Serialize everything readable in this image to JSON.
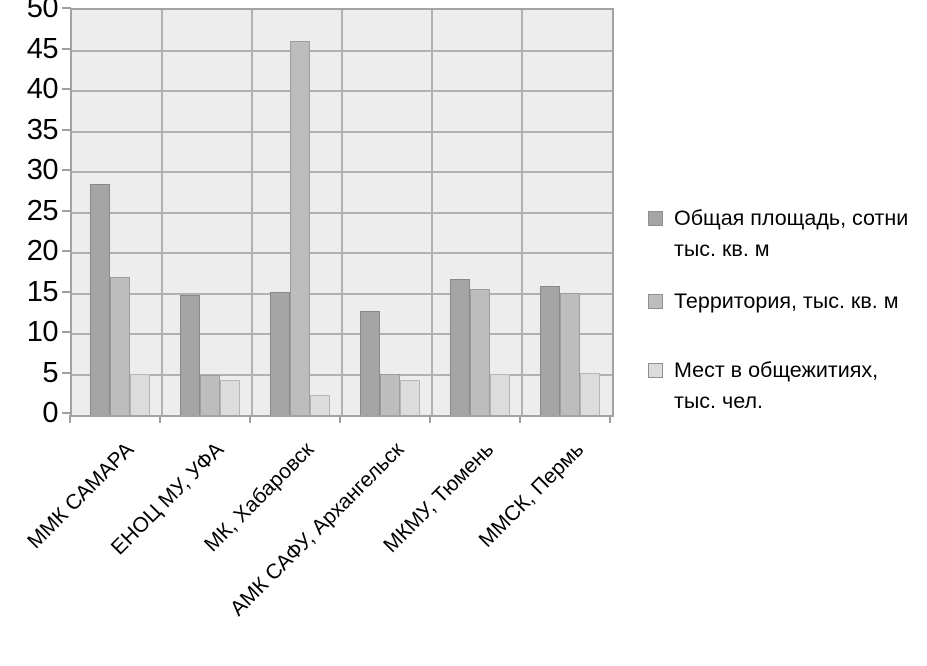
{
  "chart_data": {
    "type": "bar",
    "title": "",
    "xlabel": "",
    "ylabel": "",
    "categories": [
      "ММК САМАРА",
      "ЕНОЦ МУ, УФА",
      "МК, Хабаровск",
      "АМК САФУ, Архангельск",
      "МКМУ, Тюмень",
      "ММСК, Пермь"
    ],
    "series": [
      {
        "name": "Общая площадь, сотни тыс. кв. м",
        "legend_lines": [
          "Общая площадь, сотни",
          "тыс. кв. м"
        ],
        "color": "#a5a5a5",
        "border_color": "#898989",
        "values": [
          28.5,
          14.8,
          15.2,
          12.8,
          16.8,
          15.9
        ]
      },
      {
        "name": "Территория, тыс. кв. м",
        "legend_lines": [
          "Территория, тыс. кв. м"
        ],
        "color": "#bdbdbd",
        "border_color": "#9d9d9d",
        "values": [
          17.0,
          4.9,
          46.2,
          5.1,
          15.6,
          15.1
        ]
      },
      {
        "name": "Мест в общежитиях, тыс. чел.",
        "legend_lines": [
          "Мест в общежитиях,",
          "тыс. чел."
        ],
        "color": "#dcdcdc",
        "border_color": "#b6b6b6",
        "values": [
          5.0,
          4.3,
          2.5,
          4.3,
          5.1,
          5.2
        ]
      }
    ],
    "ylim": [
      0,
      50
    ],
    "ytick_step": 5,
    "yticks": [
      0,
      5,
      10,
      15,
      20,
      25,
      30,
      35,
      40,
      45,
      50
    ],
    "grid": true,
    "legend_position": "right",
    "plot_bg": "#ededed",
    "gridline_color": "#b1b1b1"
  }
}
